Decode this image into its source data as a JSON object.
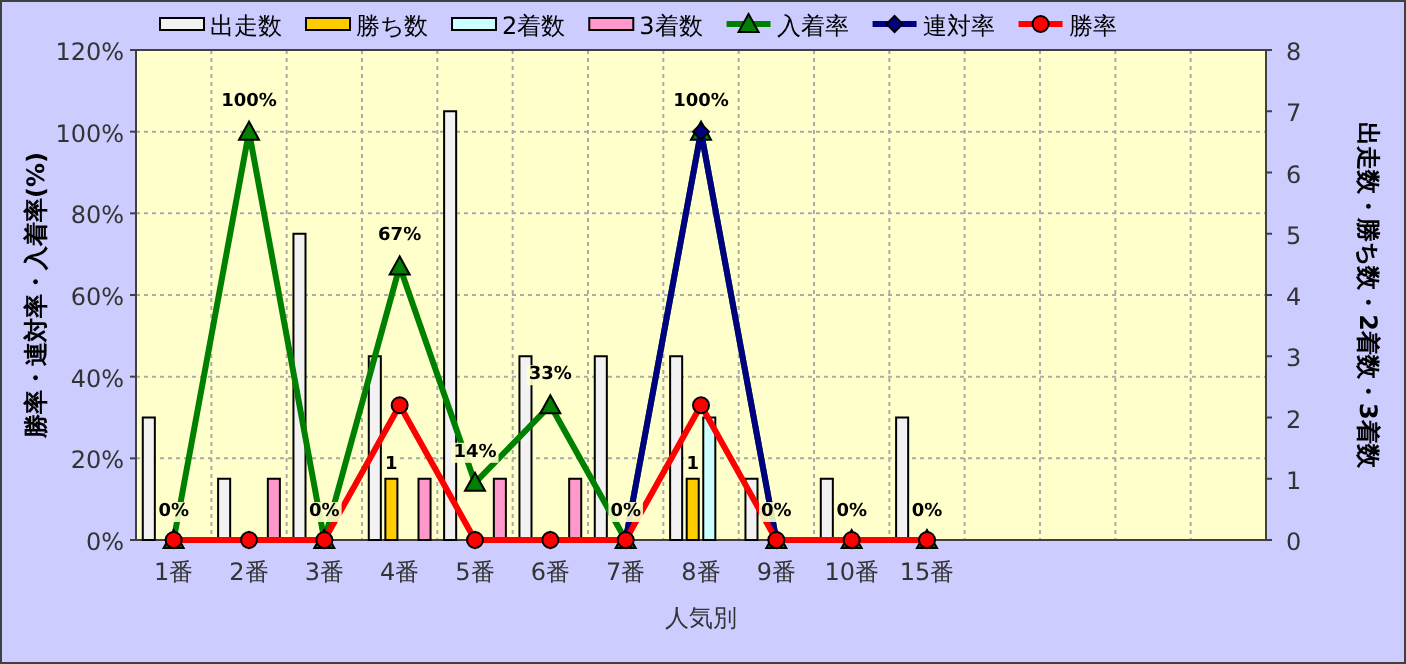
{
  "chart_data": {
    "type": "bar",
    "xlabel": "人気別",
    "ylabel": "勝率・連対率・入着率(%)",
    "y2label": "出走数・勝ち数・2着数・3着数",
    "categories": [
      "1番",
      "2番",
      "3番",
      "4番",
      "5番",
      "6番",
      "7番",
      "8番",
      "9番",
      "10番",
      "15番",
      null,
      null,
      null,
      null
    ],
    "series": [
      {
        "name": "出走数",
        "axis": "y2",
        "color": "#f2f2f2",
        "values": [
          2,
          1,
          5,
          3,
          7,
          3,
          3,
          3,
          1,
          1,
          2,
          null,
          null,
          null,
          null
        ]
      },
      {
        "name": "勝ち数",
        "axis": "y2",
        "color": "#ffcc00",
        "values": [
          0,
          0,
          0,
          1,
          0,
          0,
          0,
          1,
          0,
          0,
          0,
          null,
          null,
          null,
          null
        ],
        "value_labels": [
          null,
          null,
          null,
          "1",
          null,
          null,
          null,
          "1",
          null,
          null,
          null,
          null,
          null,
          null,
          null
        ]
      },
      {
        "name": "2着数",
        "axis": "y2",
        "color": "#ccffff",
        "values": [
          0,
          0,
          0,
          0,
          0,
          0,
          0,
          2,
          0,
          0,
          0,
          null,
          null,
          null,
          null
        ]
      },
      {
        "name": "3着数",
        "axis": "y2",
        "color": "#ff99cc",
        "values": [
          0,
          1,
          0,
          1,
          1,
          1,
          0,
          0,
          0,
          0,
          0,
          null,
          null,
          null,
          null
        ]
      },
      {
        "name": "入着率",
        "type": "line",
        "color": "#008000",
        "marker": "triangle",
        "values": [
          0,
          100,
          0,
          67,
          14,
          33,
          0,
          100,
          0,
          0,
          0,
          null,
          null,
          null,
          null
        ],
        "value_labels": [
          "0%",
          "100%",
          "0%",
          "67%",
          "14%",
          "33%",
          "0%",
          "100%",
          "0%",
          "0%",
          "0%",
          null,
          null,
          null,
          null
        ]
      },
      {
        "name": "連対率",
        "type": "line",
        "color": "#000080",
        "marker": "diamond",
        "values": [
          0,
          0,
          0,
          null,
          0,
          0,
          0,
          100,
          0,
          0,
          0,
          null,
          null,
          null,
          null
        ]
      },
      {
        "name": "勝率",
        "type": "line",
        "color": "#ff0000",
        "marker": "circle",
        "values": [
          0,
          0,
          0,
          33,
          0,
          0,
          0,
          33,
          0,
          0,
          0,
          null,
          null,
          null,
          null
        ]
      }
    ],
    "ylim": [
      0,
      120
    ],
    "yticks": [
      {
        "value": 0,
        "label": "0%"
      },
      {
        "value": 20,
        "label": "20%"
      },
      {
        "value": 40,
        "label": "40%"
      },
      {
        "value": 60,
        "label": "60%"
      },
      {
        "value": 80,
        "label": "80%"
      },
      {
        "value": 100,
        "label": "100%"
      },
      {
        "value": 120,
        "label": "120%"
      }
    ],
    "y2lim": [
      0,
      8
    ],
    "y2ticks": [
      0,
      1,
      2,
      3,
      4,
      5,
      6,
      7,
      8
    ],
    "grid": true,
    "legend": "top"
  }
}
